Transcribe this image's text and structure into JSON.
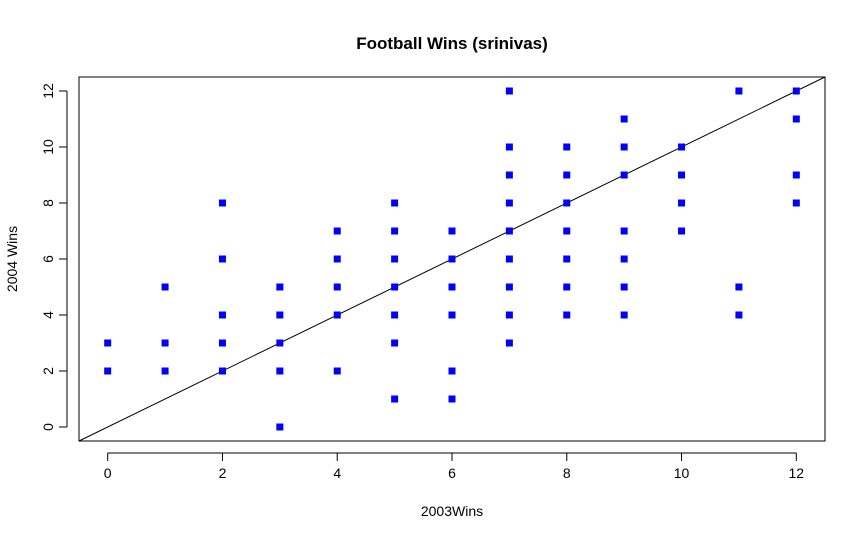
{
  "chart_data": {
    "type": "scatter",
    "title": "Football Wins (srinivas)",
    "xlabel": "2003Wins",
    "ylabel": "2004 Wins",
    "xlim": [
      -0.5,
      12.5
    ],
    "ylim": [
      -0.5,
      12.5
    ],
    "xticks": [
      0,
      2,
      4,
      6,
      8,
      10,
      12
    ],
    "yticks": [
      0,
      2,
      4,
      6,
      8,
      10,
      12
    ],
    "grid": false,
    "marker_color": "#0000ff",
    "reference_line": {
      "slope": 1,
      "intercept": 0,
      "color": "#000000"
    },
    "points": [
      [
        0,
        3
      ],
      [
        0,
        2
      ],
      [
        1,
        5
      ],
      [
        1,
        3
      ],
      [
        1,
        2
      ],
      [
        2,
        8
      ],
      [
        2,
        6
      ],
      [
        2,
        4
      ],
      [
        2,
        3
      ],
      [
        2,
        2
      ],
      [
        3,
        5
      ],
      [
        3,
        4
      ],
      [
        3,
        3
      ],
      [
        3,
        2
      ],
      [
        3,
        0
      ],
      [
        4,
        7
      ],
      [
        4,
        6
      ],
      [
        4,
        5
      ],
      [
        4,
        4
      ],
      [
        4,
        2
      ],
      [
        5,
        8
      ],
      [
        5,
        7
      ],
      [
        5,
        6
      ],
      [
        5,
        5
      ],
      [
        5,
        4
      ],
      [
        5,
        3
      ],
      [
        5,
        1
      ],
      [
        6,
        7
      ],
      [
        6,
        6
      ],
      [
        6,
        5
      ],
      [
        6,
        4
      ],
      [
        6,
        2
      ],
      [
        6,
        1
      ],
      [
        7,
        12
      ],
      [
        7,
        10
      ],
      [
        7,
        9
      ],
      [
        7,
        8
      ],
      [
        7,
        7
      ],
      [
        7,
        6
      ],
      [
        7,
        5
      ],
      [
        7,
        4
      ],
      [
        7,
        3
      ],
      [
        8,
        10
      ],
      [
        8,
        9
      ],
      [
        8,
        8
      ],
      [
        8,
        7
      ],
      [
        8,
        6
      ],
      [
        8,
        5
      ],
      [
        8,
        4
      ],
      [
        9,
        11
      ],
      [
        9,
        10
      ],
      [
        9,
        9
      ],
      [
        9,
        7
      ],
      [
        9,
        6
      ],
      [
        9,
        5
      ],
      [
        9,
        4
      ],
      [
        10,
        10
      ],
      [
        10,
        9
      ],
      [
        10,
        8
      ],
      [
        10,
        7
      ],
      [
        11,
        12
      ],
      [
        11,
        5
      ],
      [
        11,
        4
      ],
      [
        12,
        12
      ],
      [
        12,
        11
      ],
      [
        12,
        9
      ],
      [
        12,
        8
      ]
    ]
  }
}
